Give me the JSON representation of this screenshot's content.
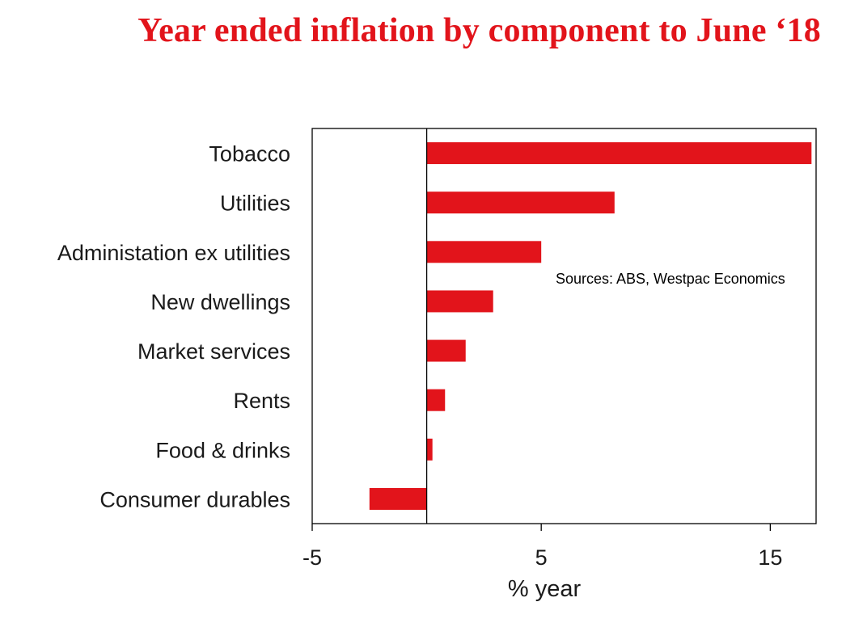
{
  "chart_data": {
    "type": "bar",
    "orientation": "horizontal",
    "title": "Year ended inflation by component to June ‘18",
    "xlabel": "% year",
    "ylabel": "",
    "xlim": [
      -5,
      17
    ],
    "xticks": [
      -5,
      5,
      15
    ],
    "tick_labels": [
      "-5",
      "5",
      "15"
    ],
    "categories": [
      "Tobacco",
      "Utilities",
      "Administation ex utilities",
      "New dwellings",
      "Market services",
      "Rents",
      "Food & drinks",
      "Consumer durables"
    ],
    "values": [
      16.8,
      8.2,
      5.0,
      2.9,
      1.7,
      0.8,
      0.25,
      -2.5
    ],
    "annotation": "Sources: ABS, Westpac Economics",
    "bar_color": "#e2141b",
    "title_color": "#e2141b",
    "grid": false,
    "legend": "none"
  }
}
